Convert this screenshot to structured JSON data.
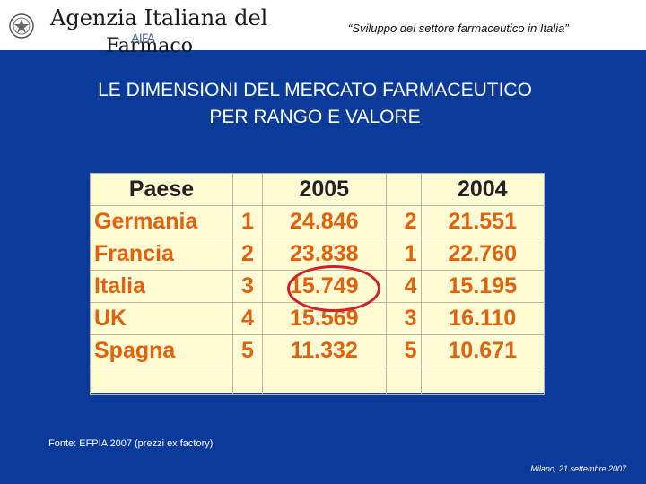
{
  "header": {
    "agency_line1": "Agenzia Italiana del",
    "agency_line2": "Farmaco",
    "logo_text": "AIFA",
    "subtitle": "“Sviluppo del settore farmaceutico in Italia”"
  },
  "slide": {
    "title_line1": "LE DIMENSIONI DEL MERCATO FARMACEUTICO",
    "title_line2": "PER RANGO E VALORE"
  },
  "table": {
    "headers": {
      "country": "Paese",
      "year_a": "2005",
      "year_b": "2004"
    },
    "rows": [
      {
        "country": "Germania",
        "rank_2005": "1",
        "value_2005": "24.846",
        "rank_2004": "2",
        "value_2004": "21.551"
      },
      {
        "country": "Francia",
        "rank_2005": "2",
        "value_2005": "23.838",
        "rank_2004": "1",
        "value_2004": "22.760"
      },
      {
        "country": "Italia",
        "rank_2005": "3",
        "value_2005": "15.749",
        "rank_2004": "4",
        "value_2004": "15.195"
      },
      {
        "country": "UK",
        "rank_2005": "4",
        "value_2005": "15.569",
        "rank_2004": "3",
        "value_2004": "16.110"
      },
      {
        "country": "Spagna",
        "rank_2005": "5",
        "value_2005": "11.332",
        "rank_2004": "5",
        "value_2004": "10.671"
      }
    ],
    "highlighted_row": "Italia",
    "highlight_color": "#d0202a",
    "value_color": "#e0620a"
  },
  "source_note": "Fonte: EFPIA 2007 (prezzi ex factory)",
  "footer": {
    "location_date": "Milano, 21 settembre 2007"
  },
  "colors": {
    "background": "#0a3a9a",
    "table_fill": "#fffcd6"
  }
}
